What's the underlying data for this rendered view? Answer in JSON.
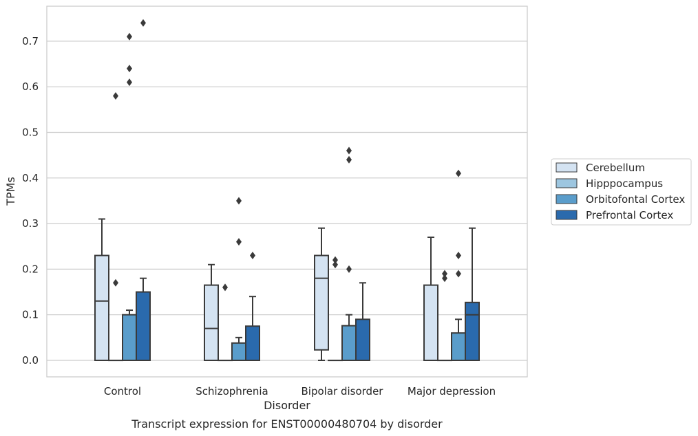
{
  "caption": "Transcript expression for ENST00000480704 by disorder",
  "chart_data": {
    "type": "box",
    "xlabel": "Disorder",
    "ylabel": "TPMs",
    "ylim": [
      -0.035,
      0.78
    ],
    "yticks": [
      0.0,
      0.1,
      0.2,
      0.3,
      0.4,
      0.5,
      0.6,
      0.7
    ],
    "ytick_labels": [
      "0.0",
      "0.1",
      "0.2",
      "0.3",
      "0.4",
      "0.5",
      "0.6",
      "0.7"
    ],
    "grid": "horizontal",
    "legend_position": "right",
    "categories": [
      "Control",
      "Schizophrenia",
      "Bipolar disorder",
      "Major depression"
    ],
    "series": [
      {
        "name": "Cerebellum",
        "color": "#d4e3f2",
        "boxes": [
          {
            "whislo": 0.0,
            "q1": 0.0,
            "med": 0.13,
            "q3": 0.23,
            "whishi": 0.31,
            "fliers": []
          },
          {
            "whislo": 0.0,
            "q1": 0.0,
            "med": 0.07,
            "q3": 0.165,
            "whishi": 0.21,
            "fliers": []
          },
          {
            "whislo": 0.0,
            "q1": 0.023,
            "med": 0.18,
            "q3": 0.23,
            "whishi": 0.29,
            "fliers": []
          },
          {
            "whislo": 0.0,
            "q1": 0.0,
            "med": 0.0,
            "q3": 0.165,
            "whishi": 0.27,
            "fliers": []
          }
        ]
      },
      {
        "name": "Hipppocampus",
        "color": "#9dc6e0",
        "boxes": [
          {
            "whislo": 0.0,
            "q1": 0.0,
            "med": 0.0,
            "q3": 0.0,
            "whishi": 0.0,
            "fliers": [
              0.17,
              0.58
            ]
          },
          {
            "whislo": 0.0,
            "q1": 0.0,
            "med": 0.0,
            "q3": 0.0,
            "whishi": 0.0,
            "fliers": [
              0.16
            ]
          },
          {
            "whislo": 0.0,
            "q1": 0.0,
            "med": 0.0,
            "q3": 0.0,
            "whishi": 0.0,
            "fliers": [
              0.21,
              0.22
            ]
          },
          {
            "whislo": 0.0,
            "q1": 0.0,
            "med": 0.0,
            "q3": 0.0,
            "whishi": 0.0,
            "fliers": [
              0.18,
              0.19
            ]
          }
        ]
      },
      {
        "name": "Orbitofontal Cortex",
        "color": "#5a9dcb",
        "boxes": [
          {
            "whislo": 0.0,
            "q1": 0.0,
            "med": 0.0,
            "q3": 0.1,
            "whishi": 0.11,
            "fliers": [
              0.61,
              0.64,
              0.71
            ]
          },
          {
            "whislo": 0.0,
            "q1": 0.0,
            "med": 0.0,
            "q3": 0.038,
            "whishi": 0.05,
            "fliers": [
              0.26,
              0.35
            ]
          },
          {
            "whislo": 0.0,
            "q1": 0.0,
            "med": 0.0,
            "q3": 0.076,
            "whishi": 0.1,
            "fliers": [
              0.2,
              0.44,
              0.46
            ]
          },
          {
            "whislo": 0.0,
            "q1": 0.0,
            "med": 0.0,
            "q3": 0.06,
            "whishi": 0.09,
            "fliers": [
              0.19,
              0.23,
              0.41
            ]
          }
        ]
      },
      {
        "name": "Prefrontal Cortex",
        "color": "#2a6aad",
        "boxes": [
          {
            "whislo": 0.0,
            "q1": 0.0,
            "med": 0.0,
            "q3": 0.15,
            "whishi": 0.18,
            "fliers": [
              0.74
            ]
          },
          {
            "whislo": 0.0,
            "q1": 0.0,
            "med": 0.0,
            "q3": 0.075,
            "whishi": 0.14,
            "fliers": [
              0.23
            ]
          },
          {
            "whislo": 0.0,
            "q1": 0.0,
            "med": 0.0,
            "q3": 0.09,
            "whishi": 0.17,
            "fliers": []
          },
          {
            "whislo": 0.0,
            "q1": 0.0,
            "med": 0.1,
            "q3": 0.127,
            "whishi": 0.29,
            "fliers": []
          }
        ]
      }
    ]
  }
}
